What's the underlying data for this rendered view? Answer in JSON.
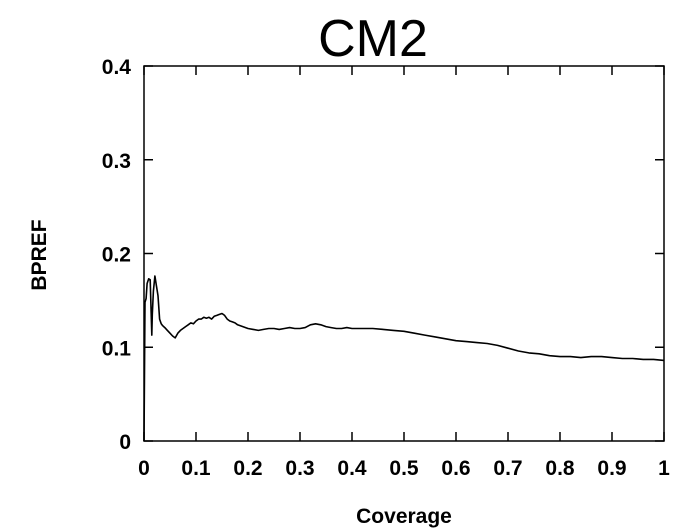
{
  "chart_data": {
    "type": "line",
    "title": "CM2",
    "xlabel": "Coverage",
    "ylabel": "BPREF",
    "xlim": [
      0,
      1
    ],
    "ylim": [
      0,
      0.4
    ],
    "x_ticks": [
      0,
      0.1,
      0.2,
      0.3,
      0.4,
      0.5,
      0.6,
      0.7,
      0.8,
      0.9,
      1
    ],
    "x_tick_labels": [
      "0",
      "0.1",
      "0.2",
      "0.3",
      "0.4",
      "0.5",
      "0.6",
      "0.7",
      "0.8",
      "0.9",
      "1"
    ],
    "y_ticks": [
      0,
      0.1,
      0.2,
      0.3,
      0.4
    ],
    "y_tick_labels": [
      "0",
      "0.1",
      "0.2",
      "0.3",
      "0.4"
    ],
    "grid": false,
    "line_color": "#000000",
    "series": [
      {
        "x": [
          0,
          0.002,
          0.004,
          0.006,
          0.009,
          0.012,
          0.015,
          0.016,
          0.018,
          0.021,
          0.024,
          0.027,
          0.03,
          0.033,
          0.036,
          0.04,
          0.045,
          0.05,
          0.055,
          0.06,
          0.065,
          0.07,
          0.075,
          0.08,
          0.085,
          0.09,
          0.095,
          0.1,
          0.105,
          0.11,
          0.115,
          0.12,
          0.125,
          0.13,
          0.135,
          0.14,
          0.145,
          0.15,
          0.155,
          0.16,
          0.165,
          0.17,
          0.175,
          0.18,
          0.19,
          0.2,
          0.21,
          0.22,
          0.23,
          0.24,
          0.25,
          0.26,
          0.27,
          0.28,
          0.29,
          0.3,
          0.31,
          0.32,
          0.33,
          0.34,
          0.35,
          0.36,
          0.37,
          0.38,
          0.39,
          0.4,
          0.42,
          0.44,
          0.46,
          0.48,
          0.5,
          0.52,
          0.54,
          0.56,
          0.58,
          0.6,
          0.62,
          0.64,
          0.66,
          0.68,
          0.7,
          0.72,
          0.74,
          0.76,
          0.78,
          0.8,
          0.82,
          0.84,
          0.86,
          0.88,
          0.9,
          0.92,
          0.94,
          0.96,
          0.98,
          1.0
        ],
        "y": [
          0,
          0.148,
          0.152,
          0.168,
          0.173,
          0.172,
          0.113,
          0.135,
          0.16,
          0.176,
          0.165,
          0.155,
          0.13,
          0.125,
          0.123,
          0.121,
          0.118,
          0.115,
          0.112,
          0.11,
          0.115,
          0.118,
          0.12,
          0.122,
          0.124,
          0.126,
          0.125,
          0.128,
          0.13,
          0.13,
          0.132,
          0.131,
          0.132,
          0.13,
          0.133,
          0.134,
          0.135,
          0.136,
          0.134,
          0.13,
          0.128,
          0.127,
          0.126,
          0.124,
          0.122,
          0.12,
          0.119,
          0.118,
          0.119,
          0.12,
          0.12,
          0.119,
          0.12,
          0.121,
          0.12,
          0.12,
          0.121,
          0.124,
          0.125,
          0.124,
          0.122,
          0.121,
          0.12,
          0.12,
          0.121,
          0.12,
          0.12,
          0.12,
          0.119,
          0.118,
          0.117,
          0.115,
          0.113,
          0.111,
          0.109,
          0.107,
          0.106,
          0.105,
          0.104,
          0.102,
          0.099,
          0.096,
          0.094,
          0.093,
          0.091,
          0.09,
          0.09,
          0.089,
          0.09,
          0.09,
          0.089,
          0.088,
          0.088,
          0.087,
          0.087,
          0.086
        ]
      }
    ]
  }
}
